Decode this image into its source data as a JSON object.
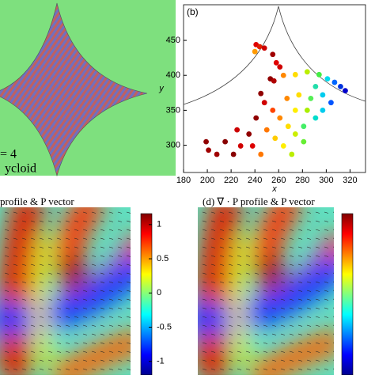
{
  "panel_a": {
    "labels": [
      "= 4",
      "ycloid"
    ]
  },
  "chart_data": [
    {
      "type": "scatter",
      "label": "(b)",
      "x_label": "x",
      "y_label": "y",
      "xlim": [
        180,
        333
      ],
      "ylim": [
        261,
        501
      ],
      "xticks": [
        180,
        200,
        220,
        240,
        260,
        280,
        300,
        320
      ],
      "yticks": [
        300,
        350,
        400,
        450
      ],
      "x": [
        241,
        244,
        248,
        240,
        255,
        258,
        261,
        253,
        256,
        264,
        274,
        284,
        294,
        301,
        307,
        312,
        316,
        245,
        248,
        255,
        261,
        268,
        274,
        281,
        241,
        235,
        228,
        222,
        215,
        208,
        199,
        201,
        250,
        257,
        264,
        271,
        281,
        291,
        297,
        304,
        287,
        277,
        267,
        291,
        297,
        284,
        274,
        238,
        245,
        225
      ],
      "values": [
        444,
        441,
        439,
        434,
        430,
        418,
        412,
        395,
        392,
        400,
        401,
        405,
        401,
        395,
        390,
        384,
        378,
        374,
        361,
        350,
        339,
        327,
        316,
        305,
        339,
        316,
        299,
        287,
        305,
        287,
        305,
        293,
        322,
        310,
        299,
        287,
        327,
        339,
        350,
        361,
        367,
        372,
        367,
        384,
        372,
        350,
        350,
        299,
        287,
        322
      ],
      "point_colors": [
        "#e00000",
        "#e02000",
        "#cc0000",
        "#ff9900",
        "#a00000",
        "#e00000",
        "#d00000",
        "#900000",
        "#b00000",
        "#ff8800",
        "#ffdd00",
        "#bbee00",
        "#44ee44",
        "#00ddee",
        "#0066ff",
        "#0033dd",
        "#0000cc",
        "#900000",
        "#d00000",
        "#ff4400",
        "#ff8800",
        "#ffdd00",
        "#ccee00",
        "#66ee33",
        "#900000",
        "#900000",
        "#d00000",
        "#880000",
        "#880000",
        "#a00000",
        "#900000",
        "#a00000",
        "#ff7700",
        "#ffcc00",
        "#ffee00",
        "#bbee00",
        "#44ee66",
        "#00ddcc",
        "#00ccee",
        "#0055ff",
        "#55ee55",
        "#ffdd00",
        "#ff8800",
        "#22ddaa",
        "#00ccee",
        "#aaee00",
        "#ffee00",
        "#dd0000",
        "#ff7700",
        "#cc0000"
      ]
    },
    {
      "type": "heatmap",
      "title": "profile & P vector",
      "clim": [
        -1.2,
        1.16
      ],
      "cticks": [
        1,
        0.5,
        0,
        -0.5,
        -1
      ]
    },
    {
      "type": "heatmap",
      "title": "(d) ∇ · P profile & P vector"
    }
  ]
}
